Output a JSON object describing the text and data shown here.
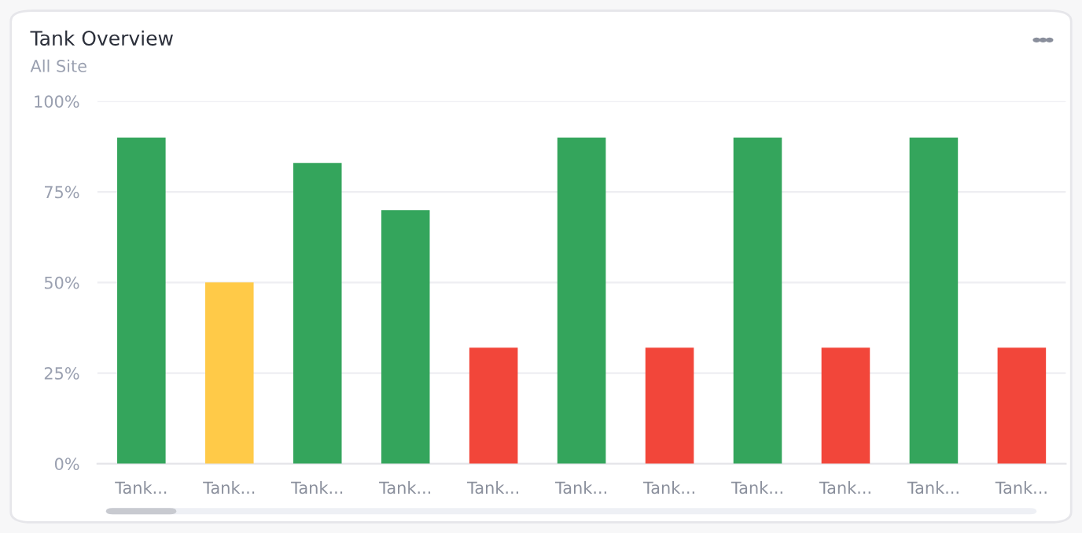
{
  "chart_data": {
    "type": "bar",
    "title": "Tank Overview",
    "subtitle": "All Site",
    "categories": [
      "Tank...",
      "Tank...",
      "Tank...",
      "Tank...",
      "Tank...",
      "Tank...",
      "Tank...",
      "Tank...",
      "Tank...",
      "Tank...",
      "Tank..."
    ],
    "values": [
      90,
      50,
      83,
      70,
      32,
      90,
      32,
      90,
      32,
      90,
      32
    ],
    "colors": [
      "#34a55c",
      "#ffca48",
      "#34a55c",
      "#34a55c",
      "#f2463a",
      "#34a55c",
      "#f2463a",
      "#34a55c",
      "#f2463a",
      "#34a55c",
      "#f2463a"
    ],
    "ylim": [
      0,
      100
    ],
    "yticks": [
      {
        "value": 0,
        "label": "0%"
      },
      {
        "value": 25,
        "label": "25%"
      },
      {
        "value": 50,
        "label": "50%"
      },
      {
        "value": 75,
        "label": "75%"
      },
      {
        "value": 100,
        "label": "100%"
      }
    ],
    "grid": "y"
  }
}
